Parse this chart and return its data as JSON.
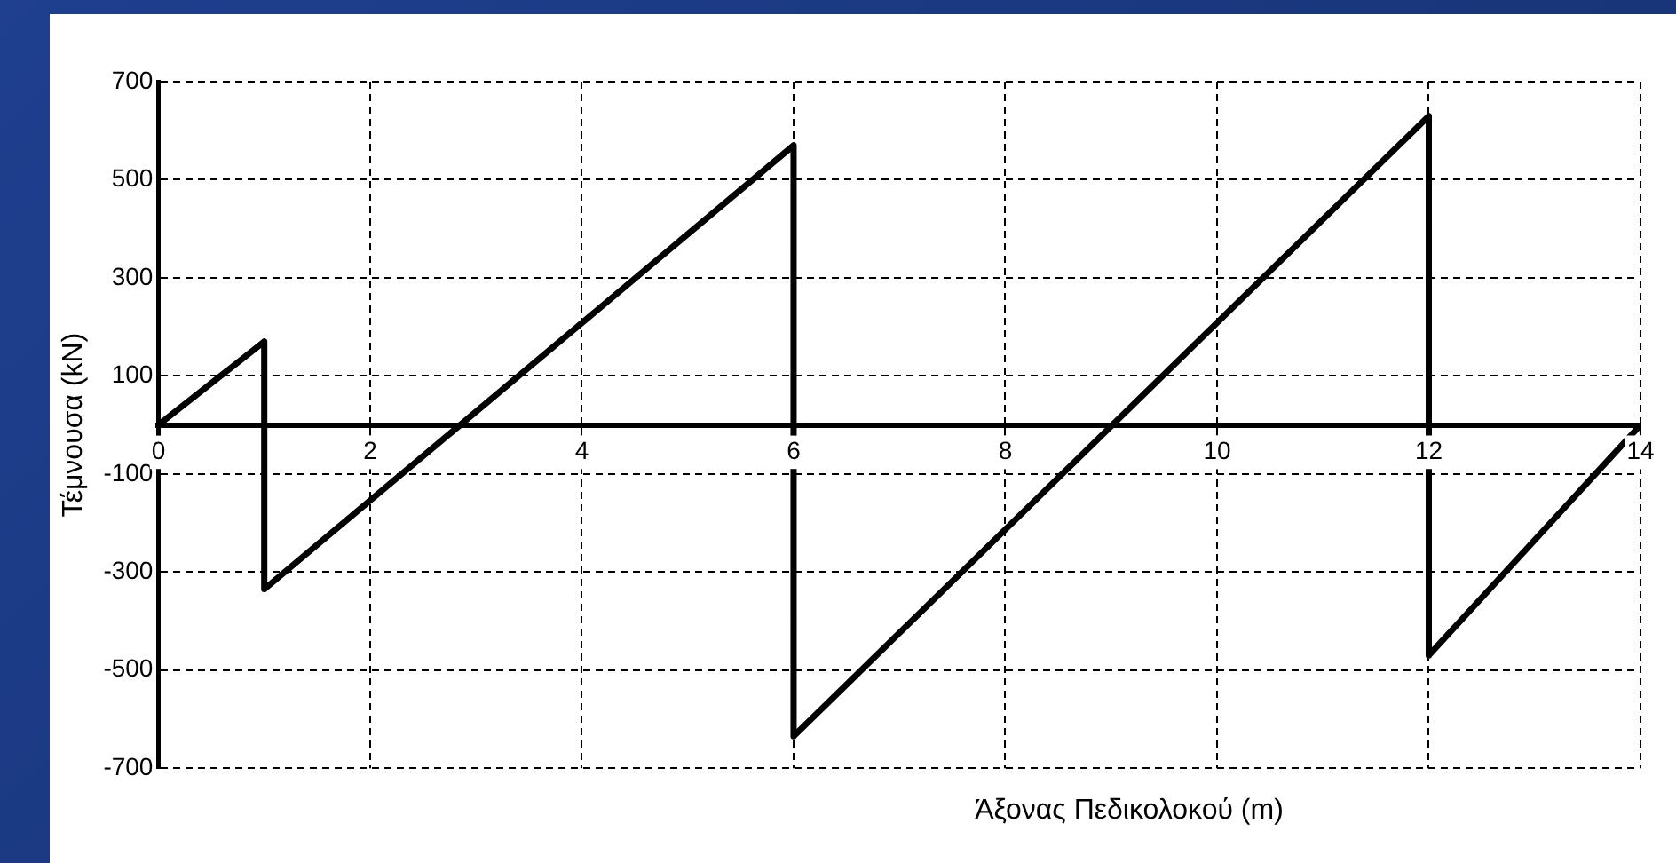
{
  "chart_data": {
    "type": "line",
    "xlabel": "Άξονας Πεδικολοκού (m)",
    "ylabel": "Τέμνουσα (kN)",
    "series": [
      {
        "color": "#000000",
        "x": [
          0,
          1,
          1,
          6,
          6,
          12,
          12,
          14
        ],
        "values": [
          0,
          170,
          -335,
          570,
          -635,
          630,
          -470,
          0
        ]
      }
    ],
    "xlim": [
      0,
      14
    ],
    "xticks": [
      0,
      2,
      4,
      6,
      8,
      10,
      12,
      14
    ],
    "ylim": [
      -700,
      700
    ],
    "yticks": [
      -700,
      -500,
      -300,
      -100,
      100,
      300,
      500,
      700
    ],
    "grid": true,
    "legend": false,
    "marker": "none",
    "line_style": "solid"
  }
}
